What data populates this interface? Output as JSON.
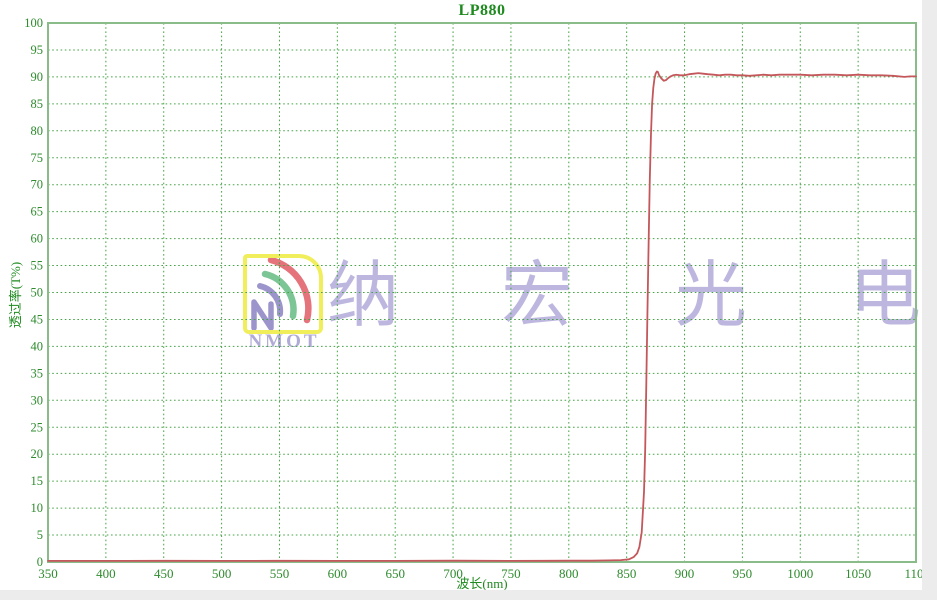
{
  "colors": {
    "title_green": "#1f8a1f",
    "tick_label_green": "#2e8b2e",
    "grid_green": "#46a346",
    "border_green": "#8abc8a",
    "curve_red": "#c4575b",
    "watermark_lavender": "#b0aad6",
    "logo_yellow": "#f1ee5c",
    "logo_arc_red": "#e4737c",
    "logo_arc_green": "#7cc595",
    "logo_arc_purple": "#9b95cc",
    "edge_gray": "#ececec"
  },
  "watermark": {
    "logo_text": "NMOT",
    "company_text": "纳 宏 光 电"
  },
  "chart_data": {
    "type": "line",
    "title": "LP880",
    "xlabel": "波长(nm)",
    "ylabel": "透过率(T%)",
    "xlim": [
      350,
      1100
    ],
    "ylim": [
      0,
      100
    ],
    "grid": true,
    "legend": "none",
    "xticks": [
      350,
      400,
      450,
      500,
      550,
      600,
      650,
      700,
      750,
      800,
      850,
      900,
      950,
      1000,
      1050,
      1100
    ],
    "yticks": [
      0,
      5,
      10,
      15,
      20,
      25,
      30,
      35,
      40,
      45,
      50,
      55,
      60,
      65,
      70,
      75,
      80,
      85,
      90,
      95,
      100
    ],
    "series": [
      {
        "name": "LP880 transmission",
        "color": "#c4575b",
        "points": [
          [
            350,
            0.2
          ],
          [
            400,
            0.2
          ],
          [
            450,
            0.22
          ],
          [
            500,
            0.2
          ],
          [
            550,
            0.23
          ],
          [
            600,
            0.2
          ],
          [
            650,
            0.21
          ],
          [
            700,
            0.24
          ],
          [
            750,
            0.2
          ],
          [
            780,
            0.22
          ],
          [
            800,
            0.24
          ],
          [
            820,
            0.25
          ],
          [
            835,
            0.3
          ],
          [
            845,
            0.35
          ],
          [
            852,
            0.5
          ],
          [
            856,
            0.9
          ],
          [
            859,
            1.6
          ],
          [
            861,
            2.8
          ],
          [
            863,
            5.5
          ],
          [
            865,
            13
          ],
          [
            866,
            21
          ],
          [
            867,
            33
          ],
          [
            868,
            47
          ],
          [
            869,
            60
          ],
          [
            870,
            71
          ],
          [
            871,
            79.5
          ],
          [
            872,
            85
          ],
          [
            873,
            88
          ],
          [
            874,
            89.6
          ],
          [
            875,
            90.6
          ],
          [
            876,
            91.0
          ],
          [
            877,
            90.9
          ],
          [
            878,
            90.3
          ],
          [
            880,
            89.7
          ],
          [
            882,
            89.3
          ],
          [
            884,
            89.4
          ],
          [
            886,
            89.8
          ],
          [
            888,
            90.1
          ],
          [
            890,
            90.3
          ],
          [
            893,
            90.4
          ],
          [
            896,
            90.3
          ],
          [
            900,
            90.3
          ],
          [
            904,
            90.5
          ],
          [
            908,
            90.6
          ],
          [
            912,
            90.7
          ],
          [
            916,
            90.6
          ],
          [
            920,
            90.5
          ],
          [
            925,
            90.4
          ],
          [
            930,
            90.3
          ],
          [
            935,
            90.4
          ],
          [
            940,
            90.4
          ],
          [
            945,
            90.3
          ],
          [
            950,
            90.3
          ],
          [
            956,
            90.2
          ],
          [
            962,
            90.3
          ],
          [
            968,
            90.4
          ],
          [
            975,
            90.3
          ],
          [
            982,
            90.4
          ],
          [
            990,
            90.4
          ],
          [
            1000,
            90.4
          ],
          [
            1010,
            90.3
          ],
          [
            1020,
            90.4
          ],
          [
            1030,
            90.4
          ],
          [
            1040,
            90.3
          ],
          [
            1050,
            90.4
          ],
          [
            1060,
            90.3
          ],
          [
            1070,
            90.3
          ],
          [
            1080,
            90.2
          ],
          [
            1090,
            90.0
          ],
          [
            1095,
            90.1
          ],
          [
            1100,
            90.1
          ]
        ]
      }
    ]
  }
}
